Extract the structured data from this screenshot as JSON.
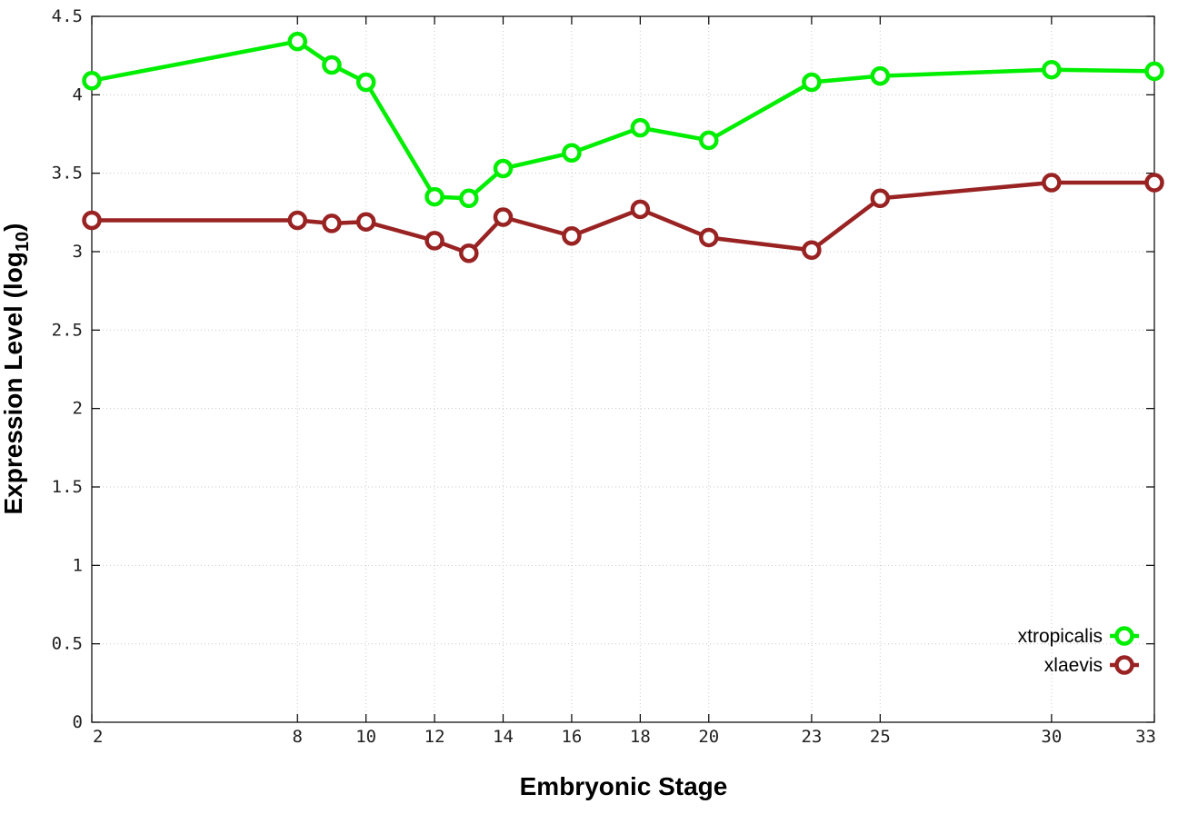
{
  "chart_data": {
    "type": "line",
    "title": "",
    "xlabel": "Embryonic Stage",
    "ylabel_main": "Expression Level (log",
    "ylabel_sub": "10",
    "ylabel_close": ")",
    "x": [
      2,
      8,
      9,
      10,
      12,
      13,
      14,
      16,
      18,
      20,
      23,
      25,
      30,
      33
    ],
    "xtick_values": [
      2,
      8,
      10,
      12,
      14,
      16,
      18,
      20,
      23,
      25,
      30,
      33
    ],
    "xtick_labels": [
      "2",
      "8",
      "10",
      "12",
      "14",
      "16",
      "18",
      "20",
      "23",
      "25",
      "30",
      "33"
    ],
    "xlim": [
      2,
      33
    ],
    "ytick_values": [
      0,
      0.5,
      1,
      1.5,
      2,
      2.5,
      3,
      3.5,
      4,
      4.5
    ],
    "ytick_labels": [
      "0",
      "0.5",
      "1",
      "1.5",
      "2",
      "2.5",
      "3",
      "3.5",
      "4",
      "4.5"
    ],
    "ylim": [
      0,
      4.5
    ],
    "grid": true,
    "legend_position": "bottom-right",
    "series": [
      {
        "name": "xtropicalis",
        "color": "#00ee00",
        "values": [
          4.09,
          4.34,
          4.19,
          4.08,
          3.35,
          3.34,
          3.53,
          3.63,
          3.79,
          3.71,
          4.08,
          4.12,
          4.16,
          4.15
        ]
      },
      {
        "name": "xlaevis",
        "color": "#992222",
        "values": [
          3.2,
          3.2,
          3.18,
          3.19,
          3.07,
          2.99,
          3.22,
          3.1,
          3.27,
          3.09,
          3.01,
          3.34,
          3.44,
          3.44
        ]
      }
    ]
  }
}
